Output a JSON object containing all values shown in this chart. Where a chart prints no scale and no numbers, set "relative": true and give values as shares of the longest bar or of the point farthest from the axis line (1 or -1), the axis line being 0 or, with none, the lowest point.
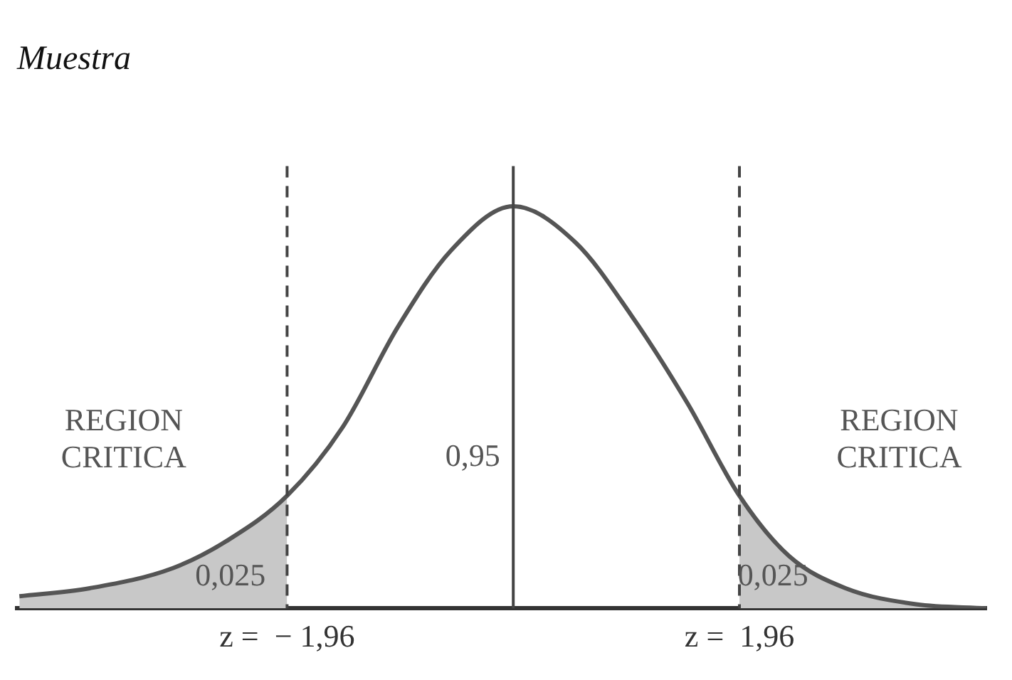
{
  "chart_data": {
    "type": "line",
    "title": "Muestra",
    "relative": true,
    "xlim": [
      -4.3,
      4.1
    ],
    "xticks": [
      {
        "value": -1.96,
        "label": "z =  − 1,96"
      },
      {
        "value": 1.96,
        "label": "z =  1,96"
      }
    ],
    "tick_labels": "x",
    "grid": false,
    "legend": false,
    "marker": "none",
    "series": [
      {
        "color": "#555555",
        "x": [
          -4.28,
          -3.67,
          -2.95,
          -2.47,
          -1.96,
          -1.48,
          -1.0,
          -0.54,
          0,
          0.54,
          1.02,
          1.51,
          1.96,
          2.39,
          2.88,
          3.49,
          4.1
        ],
        "values": [
          0.03,
          0.05,
          0.1,
          0.17,
          0.28,
          0.45,
          0.7,
          0.89,
          1,
          0.91,
          0.73,
          0.51,
          0.28,
          0.13,
          0.05,
          0.01,
          0.0
        ]
      },
      {
        "type": "area",
        "color": "#c8c8c8",
        "x": [
          -4.28,
          -3.67,
          -2.95,
          -2.47,
          -1.96
        ],
        "values": [
          0.03,
          0.05,
          0.1,
          0.17,
          0.28
        ]
      },
      {
        "type": "area",
        "color": "#c8c8c8",
        "x": [
          1.96,
          2.39,
          2.88,
          3.49,
          4.1
        ],
        "values": [
          0.28,
          0.13,
          0.05,
          0.01,
          0.0
        ]
      }
    ],
    "ref_lines": [
      {
        "axis": "x",
        "value": -1.96,
        "line_style": "dashed"
      },
      {
        "axis": "x",
        "value": 1.96,
        "line_style": "dashed"
      },
      {
        "axis": "x",
        "value": 0,
        "line_style": "solid"
      }
    ],
    "annotations": [
      "REGION CRITICA",
      "REGION CRITICA",
      "0,95",
      "0,025",
      "0,025"
    ]
  }
}
